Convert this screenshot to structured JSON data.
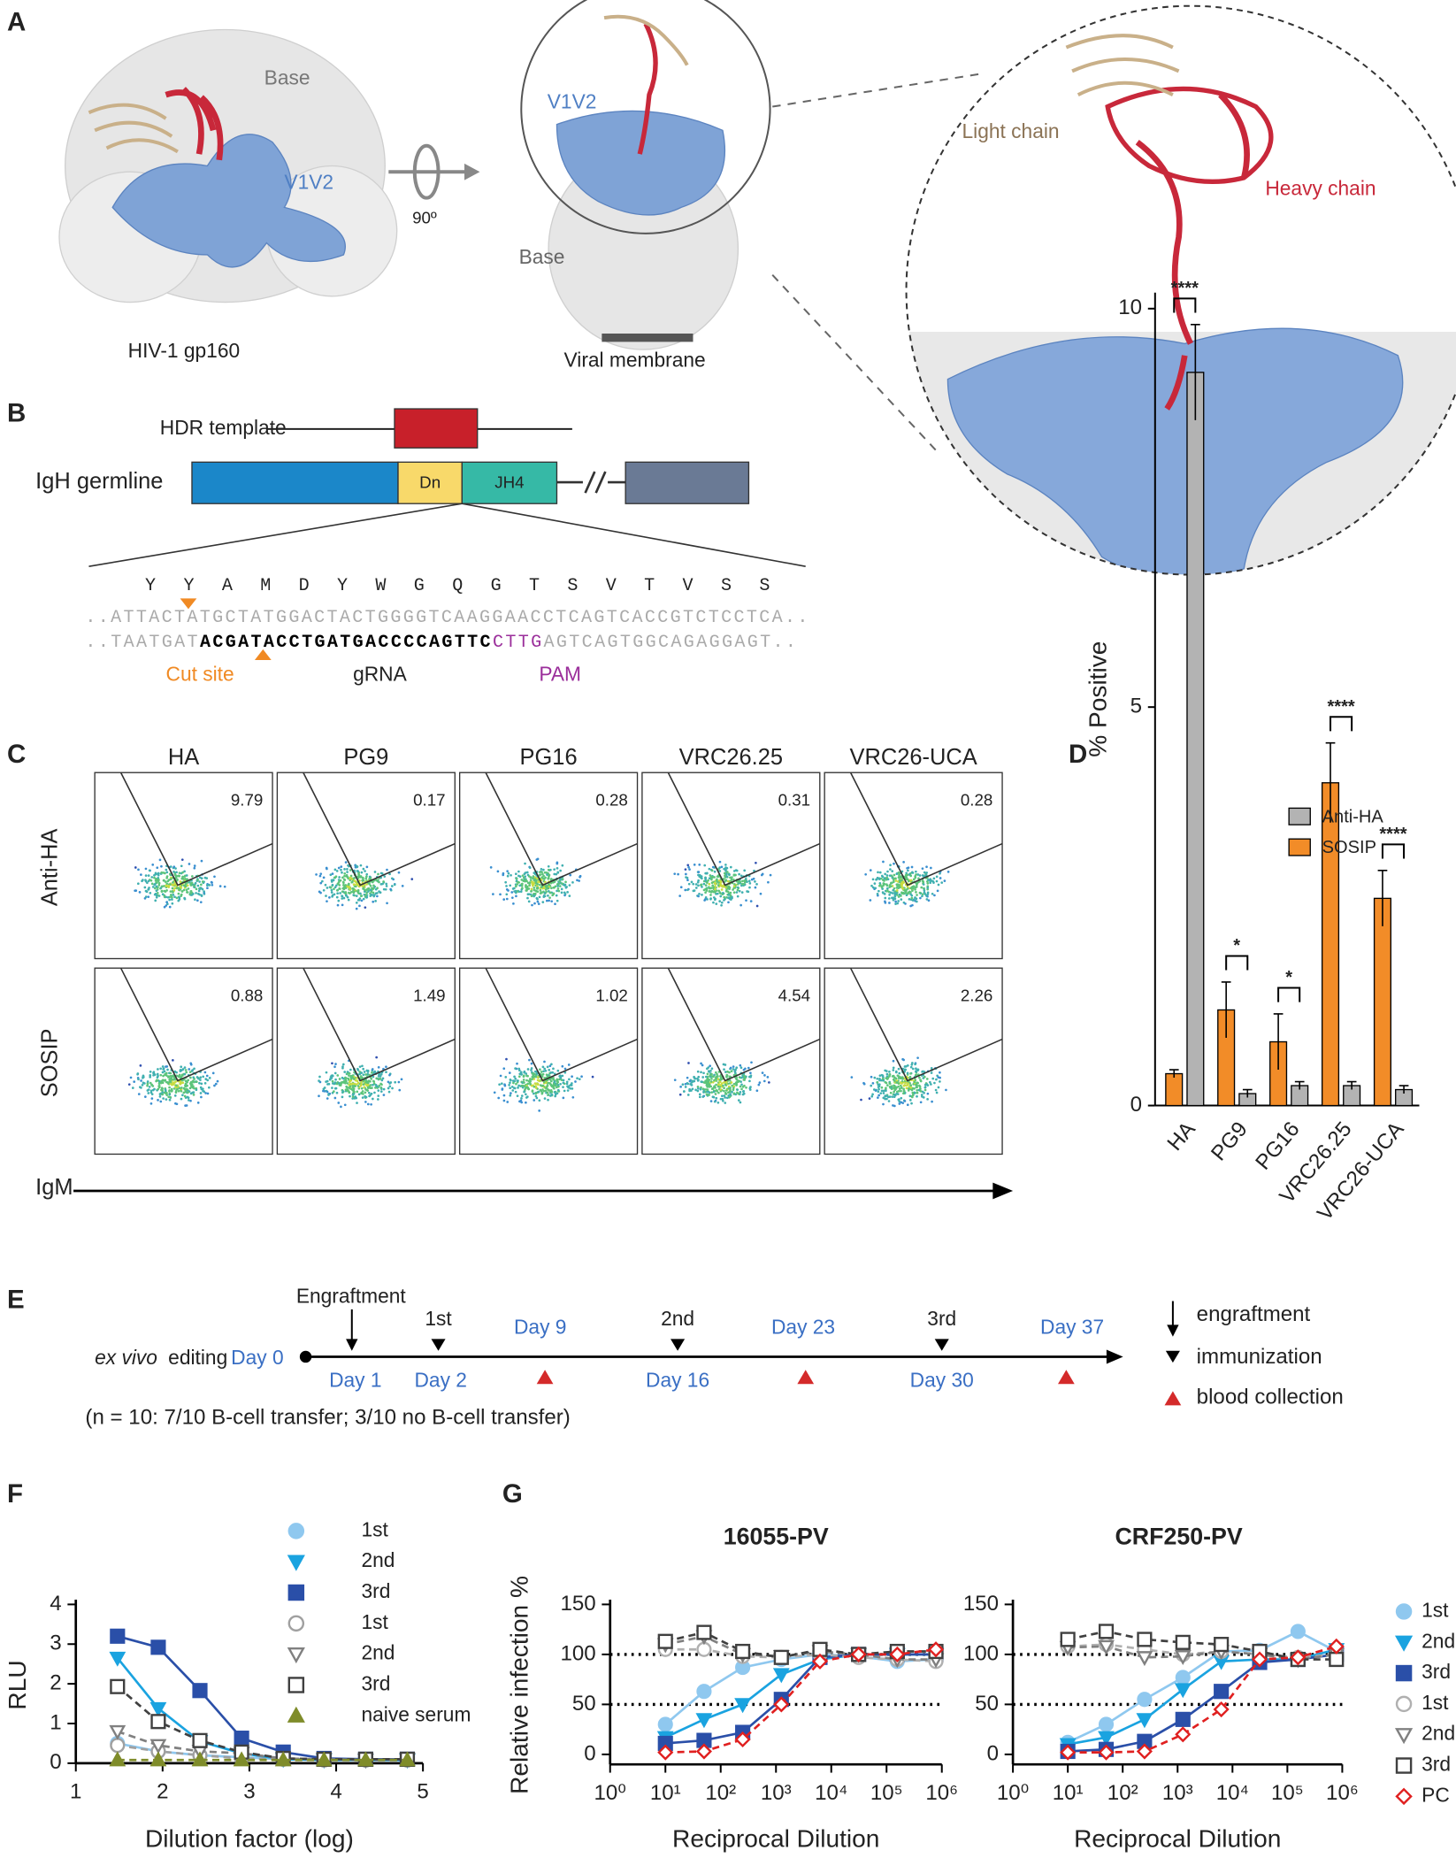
{
  "figure": {
    "labels": [
      "A",
      "B",
      "C",
      "D",
      "E",
      "F",
      "G"
    ],
    "a": {
      "base_1": "Base",
      "v1v2_1": "V1V2",
      "name": "HIV-1 gp160",
      "rotation": "90º",
      "v1v2_2": "V1V2",
      "base_2": "Base",
      "membrane": "Viral membrane",
      "light": "Light chain",
      "heavy": "Heavy chain"
    },
    "b": {
      "hdr": "HDR template",
      "igh": "IgH germline",
      "dn": "Dn",
      "jh4": "JH4",
      "aa": [
        "Y",
        "Y",
        "A",
        "M",
        "D",
        "Y",
        "W",
        "G",
        "Q",
        "G",
        "T",
        "S",
        "V",
        "T",
        "V",
        "S",
        "S"
      ],
      "seq1": "..ATTACTATGCTATGGACTACTGGGGTCAAGGAACCTCAGTCACCGTCTCCTCA..",
      "seq2": [
        "..TAATGAT",
        "ACGATACCTGATGACCCCAGTTC",
        "CTTG",
        "AGTCAGTGGCAGAGGAGT.."
      ],
      "cut": "Cut site",
      "grna": "gRNA",
      "pam": "PAM"
    },
    "c": {
      "columns": [
        "HA",
        "PG9",
        "PG16",
        "VRC26.25",
        "VRC26-UCA"
      ],
      "rows": [
        "Anti-HA",
        "SOSIP"
      ],
      "gates": [
        [
          "9.79",
          "0.17",
          "0.28",
          "0.31",
          "0.28"
        ],
        [
          "0.88",
          "1.49",
          "1.02",
          "4.54",
          "2.26"
        ]
      ],
      "axis": "IgM"
    },
    "e": {
      "engraftment": "Engraftment",
      "ex_vivo": "ex vivo",
      "editing": "editing",
      "day0": "Day 0",
      "immunizations": [
        "1st",
        "2nd",
        "3rd"
      ],
      "days_below": [
        "Day 1",
        "Day 2",
        "Day 16",
        "Day 30"
      ],
      "days_above": [
        "Day 9",
        "Day 23",
        "Day 37"
      ],
      "legend": [
        "engraftment",
        "immunization",
        "blood collection"
      ],
      "note": "(n = 10: 7/10 B-cell transfer; 3/10 no B-cell transfer)"
    }
  },
  "chart_data": [
    {
      "type": "bar",
      "ylabel": "% Positive",
      "categories": [
        "HA",
        "PG9",
        "PG16",
        "VRC26.25",
        "VRC26-UCA"
      ],
      "ylim": [
        0,
        10.2
      ],
      "yticks": [
        0,
        5,
        10
      ],
      "legend": "upper right",
      "series": [
        {
          "name": "Anti-HA",
          "color": "#b3b3b3",
          "values": [
            9.2,
            0.15,
            0.25,
            0.25,
            0.2
          ],
          "errors": [
            0.6,
            0.05,
            0.05,
            0.05,
            0.05
          ]
        },
        {
          "name": "SOSIP",
          "color": "#f28c28",
          "values": [
            0.4,
            1.2,
            0.8,
            4.05,
            2.6
          ],
          "errors": [
            0.05,
            0.35,
            0.35,
            0.5,
            0.35
          ]
        }
      ],
      "significance": [
        "****",
        "*",
        "*",
        "****",
        "****"
      ]
    },
    {
      "type": "line",
      "xlabel": "Dilution factor (log)",
      "ylabel": "RLU",
      "x": [
        1.48,
        1.95,
        2.43,
        2.91,
        3.39,
        3.86,
        4.34,
        4.82
      ],
      "xlim": [
        1,
        5
      ],
      "xticks": [
        1,
        2,
        3,
        4,
        5
      ],
      "ylim": [
        0,
        4
      ],
      "yticks": [
        0,
        1,
        2,
        3,
        4
      ],
      "series": [
        {
          "name": "1st",
          "color": "#8fc8ef",
          "marker": "circle",
          "filled": true,
          "dashed": false,
          "values": [
            0.5,
            0.3,
            0.2,
            0.15,
            0.1,
            0.1,
            0.08,
            0.08
          ]
        },
        {
          "name": "2nd",
          "color": "#1aa3e0",
          "marker": "tri-down",
          "filled": true,
          "dashed": false,
          "values": [
            2.65,
            1.38,
            0.55,
            0.25,
            0.1,
            0.08,
            0.08,
            0.08
          ]
        },
        {
          "name": "3rd",
          "color": "#2a4fa8",
          "marker": "square",
          "filled": true,
          "dashed": false,
          "values": [
            3.2,
            2.92,
            1.83,
            0.63,
            0.28,
            0.12,
            0.1,
            0.1
          ]
        },
        {
          "name": "1st",
          "color": "#a0a0a0",
          "marker": "circle",
          "filled": false,
          "dashed": true,
          "values": [
            0.45,
            0.3,
            0.2,
            0.12,
            0.1,
            0.08,
            0.08,
            0.08
          ]
        },
        {
          "name": "2nd",
          "color": "#808080",
          "marker": "tri-down",
          "filled": false,
          "dashed": true,
          "values": [
            0.8,
            0.45,
            0.3,
            0.25,
            0.12,
            0.1,
            0.08,
            0.1
          ]
        },
        {
          "name": "3rd",
          "color": "#404040",
          "marker": "square",
          "filled": false,
          "dashed": true,
          "values": [
            1.93,
            1.05,
            0.57,
            0.28,
            0.12,
            0.1,
            0.1,
            0.1
          ]
        },
        {
          "name": "naive serum",
          "color": "#7f8c2a",
          "marker": "tri-up",
          "filled": true,
          "dashed": true,
          "values": [
            0.08,
            0.08,
            0.08,
            0.08,
            0.08,
            0.08,
            0.08,
            0.08
          ]
        }
      ]
    },
    {
      "type": "line",
      "log_x": true,
      "xlabel": "Reciprocal Dilution",
      "ylabel": "Relative infection %",
      "titles": [
        "16055-PV",
        "CRF250-PV"
      ],
      "x": [
        10,
        50,
        250,
        1250,
        6250,
        31250,
        156250,
        781250
      ],
      "xlim": [
        1,
        1000000
      ],
      "xticks": [
        {
          "value": 1,
          "label": "10⁰"
        },
        {
          "value": 10,
          "label": "10¹"
        },
        {
          "value": 100,
          "label": "10²"
        },
        {
          "value": 1000,
          "label": "10³"
        },
        {
          "value": 10000,
          "label": "10⁴"
        },
        {
          "value": 100000,
          "label": "10⁵"
        },
        {
          "value": 1000000,
          "label": "10⁶"
        }
      ],
      "ylim": [
        -10,
        150
      ],
      "yticks": [
        0,
        50,
        100,
        150
      ],
      "reference_lines": [
        50,
        100
      ],
      "series": [
        {
          "name": "1st",
          "color": "#8fc8ef",
          "marker": "circle",
          "filled": true,
          "dashed": false,
          "values": [
            [
              30,
              63,
              87,
              95,
              100,
              98,
              93,
              95
            ],
            [
              12,
              30,
              55,
              77,
              103,
              104,
              123,
              103
            ]
          ]
        },
        {
          "name": "2nd",
          "color": "#1aa3e0",
          "marker": "tri-down",
          "filled": true,
          "dashed": false,
          "values": [
            [
              17,
              35,
              50,
              80,
              95,
              100,
              100,
              100
            ],
            [
              10,
              17,
              35,
              65,
              93,
              95,
              95,
              105
            ]
          ]
        },
        {
          "name": "3rd",
          "color": "#2a4fa8",
          "marker": "square",
          "filled": true,
          "dashed": false,
          "values": [
            [
              11,
              14,
              22,
              55,
              97,
              100,
              100,
              100
            ],
            [
              3,
              5,
              13,
              35,
              63,
              92,
              95,
              100
            ]
          ]
        },
        {
          "name": "1st",
          "color": "#b0b0b0",
          "marker": "circle",
          "filled": false,
          "dashed": true,
          "values": [
            [
              105,
              105,
              98,
              97,
              100,
              97,
              95,
              93
            ],
            [
              108,
              110,
              105,
              100,
              103,
              100,
              97,
              100
            ]
          ]
        },
        {
          "name": "2nd",
          "color": "#808080",
          "marker": "tri-down",
          "filled": false,
          "dashed": true,
          "values": [
            [
              110,
              118,
              100,
              98,
              103,
              100,
              95,
              95
            ],
            [
              107,
              108,
              97,
              98,
              103,
              100,
              95,
              100
            ]
          ]
        },
        {
          "name": "3rd",
          "color": "#404040",
          "marker": "square",
          "filled": false,
          "dashed": true,
          "values": [
            [
              113,
              122,
              103,
              97,
              105,
              100,
              103,
              103
            ],
            [
              115,
              123,
              115,
              112,
              110,
              103,
              95,
              95
            ]
          ]
        },
        {
          "name": "PC",
          "color": "#e02020",
          "marker": "diamond",
          "filled": false,
          "dashed": true,
          "values": [
            [
              2,
              3,
              15,
              50,
              93,
              100,
              100,
              105
            ],
            [
              2,
              2,
              3,
              20,
              45,
              95,
              97,
              108
            ]
          ]
        }
      ]
    }
  ]
}
